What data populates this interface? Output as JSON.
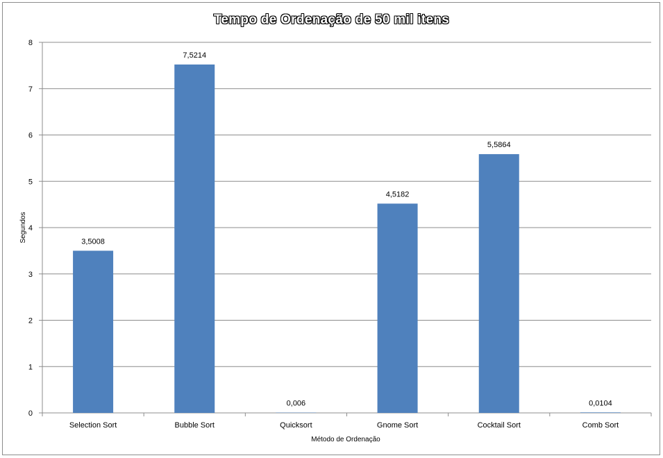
{
  "chart_data": {
    "type": "bar",
    "title": "Tempo de Ordenação de 50 mil itens",
    "xlabel": "Método de Ordenação",
    "ylabel": "Segundos",
    "categories": [
      "Selection Sort",
      "Bubble Sort",
      "Quicksort",
      "Gnome Sort",
      "Cocktail Sort",
      "Comb Sort"
    ],
    "values": [
      3.5008,
      7.5214,
      0.006,
      4.5182,
      5.5864,
      0.0104
    ],
    "value_labels": [
      "3,5008",
      "7,5214",
      "0,006",
      "4,5182",
      "5,5864",
      "0,0104"
    ],
    "yticks": [
      "0",
      "1",
      "2",
      "3",
      "4",
      "5",
      "6",
      "7",
      "8"
    ],
    "ylim": [
      0,
      8
    ],
    "grid": true,
    "legend": "none",
    "bar_color": "#4f81bd"
  }
}
